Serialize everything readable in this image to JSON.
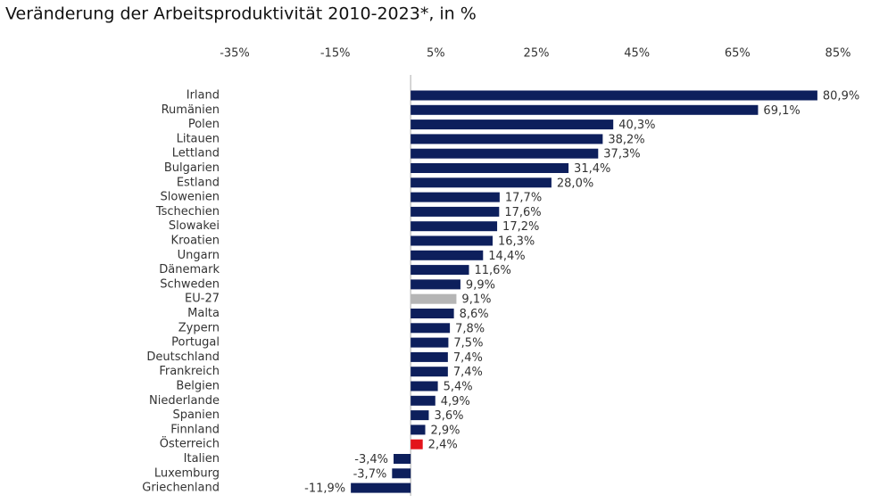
{
  "chart_data": {
    "type": "barh",
    "title": "Veränderung der Arbeitsproduktivität 2010-2023*, in %",
    "categories": [
      "Irland",
      "Rumänien",
      "Polen",
      "Litauen",
      "Lettland",
      "Bulgarien",
      "Estland",
      "Slowenien",
      "Tschechien",
      "Slowakei",
      "Kroatien",
      "Ungarn",
      "Dänemark",
      "Schweden",
      "EU-27",
      "Malta",
      "Zypern",
      "Portugal",
      "Deutschland",
      "Frankreich",
      "Belgien",
      "Niederlande",
      "Spanien",
      "Finnland",
      "Österreich",
      "Italien",
      "Luxemburg",
      "Griechenland"
    ],
    "values": [
      80.9,
      69.1,
      40.3,
      38.2,
      37.3,
      31.4,
      28.0,
      17.7,
      17.6,
      17.2,
      16.3,
      14.4,
      11.6,
      9.9,
      9.1,
      8.6,
      7.8,
      7.5,
      7.4,
      7.4,
      5.4,
      4.9,
      3.6,
      2.9,
      2.4,
      -3.4,
      -3.7,
      -11.9
    ],
    "value_labels": [
      "80,9%",
      "69,1%",
      "40,3%",
      "38,2%",
      "37,3%",
      "31,4%",
      "28,0%",
      "17,7%",
      "17,6%",
      "17,2%",
      "16,3%",
      "14,4%",
      "11,6%",
      "9,9%",
      "9,1%",
      "8,6%",
      "7,8%",
      "7,5%",
      "7,4%",
      "7,4%",
      "5,4%",
      "4,9%",
      "3,6%",
      "2,9%",
      "2,4%",
      "-3,4%",
      "-3,7%",
      "-11,9%"
    ],
    "colors": [
      "#0d1f5c",
      "#0d1f5c",
      "#0d1f5c",
      "#0d1f5c",
      "#0d1f5c",
      "#0d1f5c",
      "#0d1f5c",
      "#0d1f5c",
      "#0d1f5c",
      "#0d1f5c",
      "#0d1f5c",
      "#0d1f5c",
      "#0d1f5c",
      "#0d1f5c",
      "#b5b5b5",
      "#0d1f5c",
      "#0d1f5c",
      "#0d1f5c",
      "#0d1f5c",
      "#0d1f5c",
      "#0d1f5c",
      "#0d1f5c",
      "#0d1f5c",
      "#0d1f5c",
      "#e3141b",
      "#0d1f5c",
      "#0d1f5c",
      "#0d1f5c"
    ],
    "xlim": [
      -35,
      85
    ],
    "xticks": [
      {
        "value": -35,
        "label": "-35%"
      },
      {
        "value": -15,
        "label": "-15%"
      },
      {
        "value": 5,
        "label": "5%"
      },
      {
        "value": 25,
        "label": "25%"
      },
      {
        "value": 45,
        "label": "45%"
      },
      {
        "value": 65,
        "label": "65%"
      },
      {
        "value": 85,
        "label": "85%"
      }
    ]
  }
}
